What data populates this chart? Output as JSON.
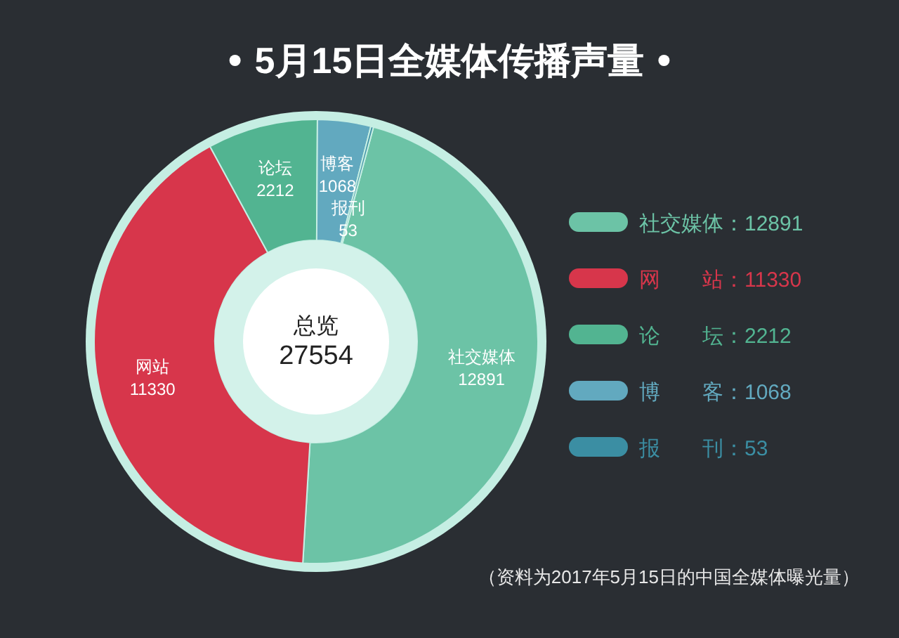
{
  "chart_data": {
    "type": "donut",
    "title": "5月15日全媒体传播声量",
    "categories": [
      "社交媒体",
      "网站",
      "论坛",
      "博客",
      "报刊"
    ],
    "values": [
      12891,
      11330,
      2212,
      1068,
      53
    ],
    "colors": [
      "#6cc3a6",
      "#d7364b",
      "#52b491",
      "#62a9bf",
      "#3b8ea3"
    ],
    "data_labels": true,
    "legend": "right",
    "annotations": [
      "总览",
      "27554",
      "（资料为2017年5月15日的中国全媒体曝光量）",
      "：12891",
      "：11330",
      "：2212",
      "：1068",
      "：53"
    ]
  }
}
